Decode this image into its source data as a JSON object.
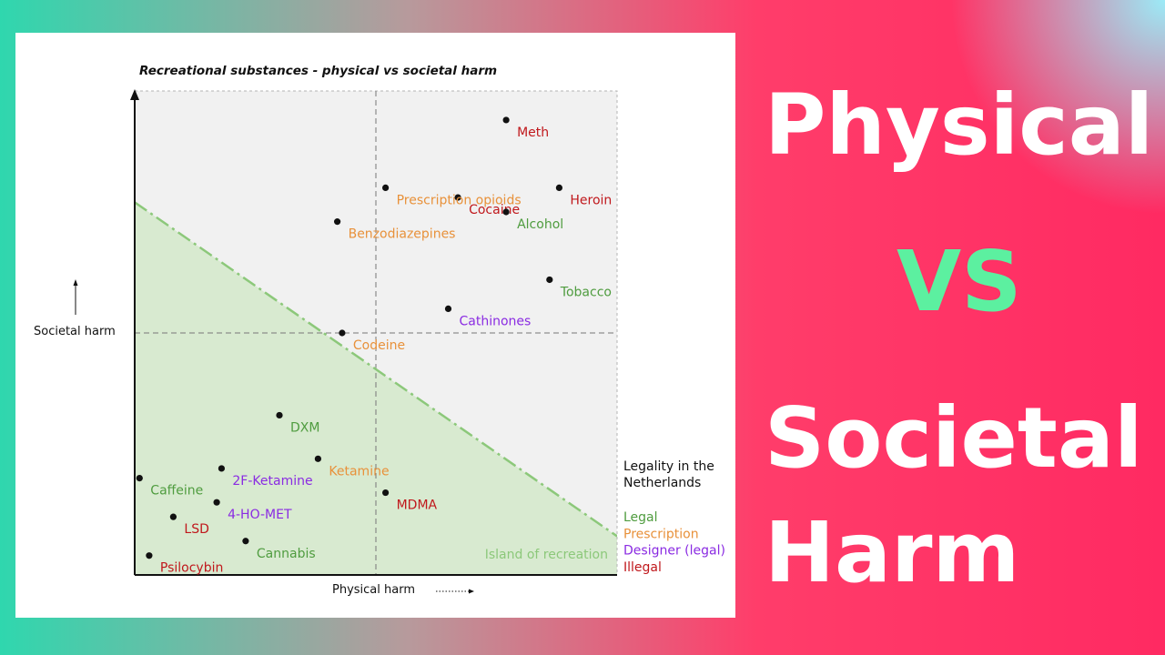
{
  "headline": {
    "line1": "Physical",
    "line2": "VS",
    "line3": "Societal",
    "line4": "Harm"
  },
  "colors": {
    "legal": "#4f9c3f",
    "prescription": "#e8913a",
    "designer": "#8a2be2",
    "illegal": "#c0181c",
    "zone_fill": "#d8ead0",
    "zone_line": "#8cc87a",
    "quadrant_bg": "#f1f1f1"
  },
  "chart_data": {
    "type": "scatter",
    "title": "Recreational substances - physical vs societal harm",
    "xlabel": "Physical harm",
    "ylabel": "Societal harm",
    "xlim": [
      0,
      10
    ],
    "ylim": [
      0,
      10
    ],
    "grid": false,
    "dividers": {
      "x": 5,
      "y": 5
    },
    "zone": {
      "label": "Island of recreation",
      "line_from": [
        0,
        7.7
      ],
      "line_to": [
        10,
        0.8
      ]
    },
    "legend": {
      "title": "Legality in the Netherlands",
      "position": "right",
      "entries": [
        {
          "label": "Legal",
          "category": "legal"
        },
        {
          "label": "Prescription",
          "category": "prescription"
        },
        {
          "label": "Designer (legal)",
          "category": "designer"
        },
        {
          "label": "Illegal",
          "category": "illegal"
        }
      ]
    },
    "points": [
      {
        "label": "Meth",
        "x": 7.7,
        "y": 9.4,
        "category": "illegal"
      },
      {
        "label": "Cocaine",
        "x": 6.7,
        "y": 7.8,
        "category": "illegal"
      },
      {
        "label": "Prescription opioids",
        "x": 5.2,
        "y": 8.0,
        "category": "prescription"
      },
      {
        "label": "Heroin",
        "x": 8.8,
        "y": 8.0,
        "category": "illegal"
      },
      {
        "label": "Alcohol",
        "x": 7.7,
        "y": 7.5,
        "category": "legal"
      },
      {
        "label": "Benzodiazepines",
        "x": 4.2,
        "y": 7.3,
        "category": "prescription"
      },
      {
        "label": "Tobacco",
        "x": 8.6,
        "y": 6.1,
        "category": "legal"
      },
      {
        "label": "Cathinones",
        "x": 6.5,
        "y": 5.5,
        "category": "designer"
      },
      {
        "label": "Codeine",
        "x": 4.3,
        "y": 5.0,
        "category": "prescription"
      },
      {
        "label": "DXM",
        "x": 3.0,
        "y": 3.3,
        "category": "legal"
      },
      {
        "label": "Ketamine",
        "x": 3.8,
        "y": 2.4,
        "category": "prescription"
      },
      {
        "label": "Caffeine",
        "x": 0.1,
        "y": 2.0,
        "category": "legal"
      },
      {
        "label": "2F-Ketamine",
        "x": 1.8,
        "y": 2.2,
        "category": "designer"
      },
      {
        "label": "MDMA",
        "x": 5.2,
        "y": 1.7,
        "category": "illegal"
      },
      {
        "label": "LSD",
        "x": 0.8,
        "y": 1.2,
        "category": "illegal"
      },
      {
        "label": "4-HO-MET",
        "x": 1.7,
        "y": 1.5,
        "category": "designer"
      },
      {
        "label": "Cannabis",
        "x": 2.3,
        "y": 0.7,
        "category": "legal"
      },
      {
        "label": "Psilocybin",
        "x": 0.3,
        "y": 0.4,
        "category": "illegal"
      }
    ]
  }
}
